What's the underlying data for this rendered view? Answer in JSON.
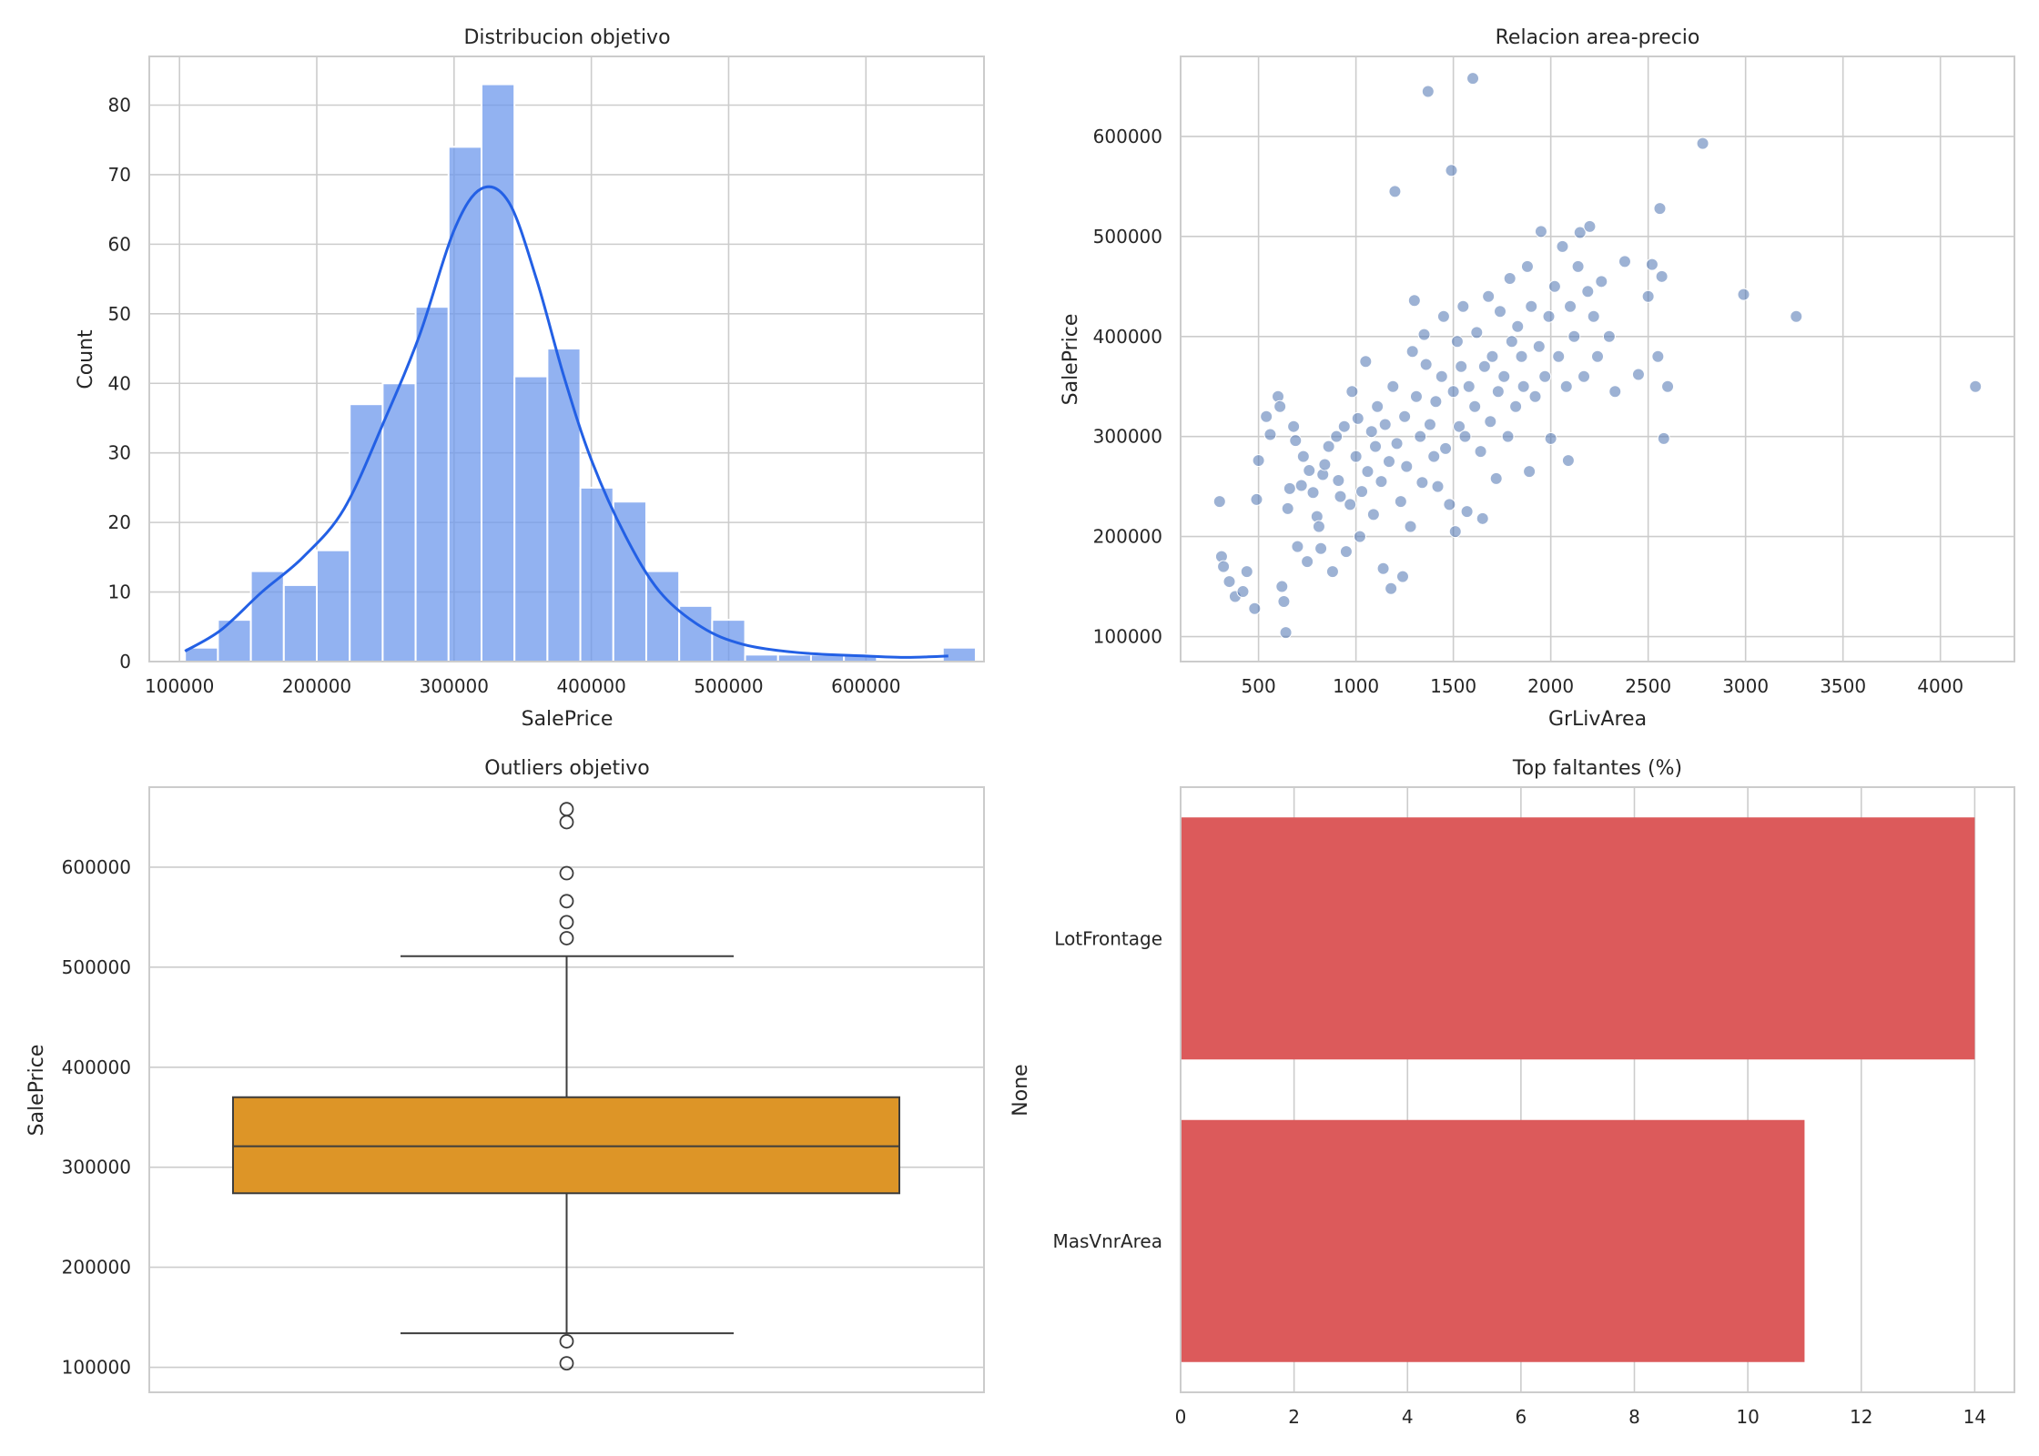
{
  "chart_data": [
    {
      "type": "histogram",
      "title": "Distribucion objetivo",
      "xlabel": "SalePrice",
      "ylabel": "Count",
      "xlim": [
        78000,
        686000
      ],
      "ylim": [
        0,
        87
      ],
      "xticks": [
        100000,
        200000,
        300000,
        400000,
        500000,
        600000
      ],
      "yticks": [
        0,
        10,
        20,
        30,
        40,
        50,
        60,
        70,
        80
      ],
      "bin_start": 104000,
      "bin_width": 24000,
      "counts": [
        2,
        6,
        13,
        11,
        16,
        37,
        40,
        51,
        74,
        83,
        41,
        45,
        25,
        23,
        13,
        8,
        6,
        1,
        1,
        1,
        1,
        0,
        0,
        2
      ],
      "kde": [
        [
          104000,
          1.5
        ],
        [
          130000,
          4.5
        ],
        [
          160000,
          10
        ],
        [
          190000,
          15
        ],
        [
          220000,
          22
        ],
        [
          250000,
          35
        ],
        [
          275000,
          47
        ],
        [
          300000,
          62
        ],
        [
          320000,
          68
        ],
        [
          340000,
          66
        ],
        [
          360000,
          55
        ],
        [
          380000,
          41
        ],
        [
          400000,
          29
        ],
        [
          425000,
          18
        ],
        [
          450000,
          10
        ],
        [
          480000,
          5
        ],
        [
          510000,
          2.5
        ],
        [
          550000,
          1.3
        ],
        [
          600000,
          0.8
        ],
        [
          630000,
          0.6
        ],
        [
          660000,
          0.8
        ]
      ],
      "bar_color": "#6d98ec",
      "line_color": "#2360e5",
      "grid": true
    },
    {
      "type": "scatter",
      "title": "Relacion area-precio",
      "xlabel": "GrLivArea",
      "ylabel": "SalePrice",
      "xlim": [
        100,
        4380
      ],
      "ylim": [
        75000,
        680000
      ],
      "xticks": [
        500,
        1000,
        1500,
        2000,
        2500,
        3000,
        3500,
        4000
      ],
      "yticks": [
        100000,
        200000,
        300000,
        400000,
        500000,
        600000
      ],
      "point_color": "#4c72b0",
      "grid": true,
      "points": [
        [
          300,
          235000
        ],
        [
          310,
          180000
        ],
        [
          320,
          170000
        ],
        [
          350,
          155000
        ],
        [
          380,
          140000
        ],
        [
          420,
          145000
        ],
        [
          440,
          165000
        ],
        [
          480,
          128000
        ],
        [
          490,
          237000
        ],
        [
          500,
          276000
        ],
        [
          540,
          320000
        ],
        [
          560,
          302000
        ],
        [
          600,
          340000
        ],
        [
          610,
          330000
        ],
        [
          620,
          150000
        ],
        [
          630,
          135000
        ],
        [
          640,
          104000
        ],
        [
          650,
          228000
        ],
        [
          660,
          248000
        ],
        [
          680,
          310000
        ],
        [
          690,
          296000
        ],
        [
          700,
          190000
        ],
        [
          720,
          251000
        ],
        [
          730,
          280000
        ],
        [
          750,
          175000
        ],
        [
          760,
          266000
        ],
        [
          780,
          244000
        ],
        [
          800,
          220000
        ],
        [
          810,
          210000
        ],
        [
          820,
          188000
        ],
        [
          830,
          262000
        ],
        [
          840,
          272000
        ],
        [
          860,
          290000
        ],
        [
          880,
          165000
        ],
        [
          900,
          300000
        ],
        [
          910,
          256000
        ],
        [
          920,
          240000
        ],
        [
          940,
          310000
        ],
        [
          950,
          185000
        ],
        [
          970,
          232000
        ],
        [
          980,
          345000
        ],
        [
          1000,
          280000
        ],
        [
          1010,
          318000
        ],
        [
          1020,
          200000
        ],
        [
          1030,
          245000
        ],
        [
          1050,
          375000
        ],
        [
          1060,
          265000
        ],
        [
          1080,
          305000
        ],
        [
          1090,
          222000
        ],
        [
          1100,
          290000
        ],
        [
          1110,
          330000
        ],
        [
          1130,
          255000
        ],
        [
          1140,
          168000
        ],
        [
          1150,
          312000
        ],
        [
          1170,
          275000
        ],
        [
          1180,
          148000
        ],
        [
          1190,
          350000
        ],
        [
          1200,
          545000
        ],
        [
          1210,
          293000
        ],
        [
          1230,
          235000
        ],
        [
          1240,
          160000
        ],
        [
          1250,
          320000
        ],
        [
          1260,
          270000
        ],
        [
          1280,
          210000
        ],
        [
          1290,
          385000
        ],
        [
          1300,
          436000
        ],
        [
          1310,
          340000
        ],
        [
          1330,
          300000
        ],
        [
          1340,
          254000
        ],
        [
          1350,
          402000
        ],
        [
          1360,
          372000
        ],
        [
          1370,
          645000
        ],
        [
          1380,
          312000
        ],
        [
          1400,
          280000
        ],
        [
          1410,
          335000
        ],
        [
          1420,
          250000
        ],
        [
          1440,
          360000
        ],
        [
          1450,
          420000
        ],
        [
          1460,
          288000
        ],
        [
          1480,
          232000
        ],
        [
          1490,
          566000
        ],
        [
          1500,
          345000
        ],
        [
          1510,
          205000
        ],
        [
          1520,
          395000
        ],
        [
          1530,
          310000
        ],
        [
          1540,
          370000
        ],
        [
          1550,
          430000
        ],
        [
          1560,
          300000
        ],
        [
          1570,
          225000
        ],
        [
          1580,
          350000
        ],
        [
          1600,
          658000
        ],
        [
          1610,
          330000
        ],
        [
          1620,
          404000
        ],
        [
          1640,
          285000
        ],
        [
          1650,
          218000
        ],
        [
          1660,
          370000
        ],
        [
          1680,
          440000
        ],
        [
          1690,
          315000
        ],
        [
          1700,
          380000
        ],
        [
          1720,
          258000
        ],
        [
          1730,
          345000
        ],
        [
          1740,
          425000
        ],
        [
          1760,
          360000
        ],
        [
          1780,
          300000
        ],
        [
          1790,
          458000
        ],
        [
          1800,
          395000
        ],
        [
          1820,
          330000
        ],
        [
          1830,
          410000
        ],
        [
          1850,
          380000
        ],
        [
          1860,
          350000
        ],
        [
          1880,
          470000
        ],
        [
          1890,
          265000
        ],
        [
          1900,
          430000
        ],
        [
          1920,
          340000
        ],
        [
          1940,
          390000
        ],
        [
          1950,
          505000
        ],
        [
          1970,
          360000
        ],
        [
          1990,
          420000
        ],
        [
          2000,
          298000
        ],
        [
          2020,
          450000
        ],
        [
          2040,
          380000
        ],
        [
          2060,
          490000
        ],
        [
          2080,
          350000
        ],
        [
          2090,
          276000
        ],
        [
          2100,
          430000
        ],
        [
          2120,
          400000
        ],
        [
          2140,
          470000
        ],
        [
          2150,
          504000
        ],
        [
          2170,
          360000
        ],
        [
          2190,
          445000
        ],
        [
          2200,
          510000
        ],
        [
          2220,
          420000
        ],
        [
          2240,
          380000
        ],
        [
          2260,
          455000
        ],
        [
          2300,
          400000
        ],
        [
          2330,
          345000
        ],
        [
          2380,
          475000
        ],
        [
          2450,
          362000
        ],
        [
          2500,
          440000
        ],
        [
          2520,
          472000
        ],
        [
          2550,
          380000
        ],
        [
          2560,
          528000
        ],
        [
          2570,
          460000
        ],
        [
          2580,
          298000
        ],
        [
          2600,
          350000
        ],
        [
          2780,
          593000
        ],
        [
          2990,
          442000
        ],
        [
          3260,
          420000
        ],
        [
          4180,
          350000
        ]
      ]
    },
    {
      "type": "box",
      "title": "Outliers objetivo",
      "ylabel": "SalePrice",
      "ylim": [
        75000,
        680000
      ],
      "yticks": [
        100000,
        200000,
        300000,
        400000,
        500000,
        600000
      ],
      "box": {
        "whisker_low": 134000,
        "q1": 274000,
        "median": 321000,
        "q3": 370000,
        "whisker_high": 511000
      },
      "outliers": [
        658000,
        645000,
        594000,
        566000,
        545000,
        529000,
        126000,
        104000
      ],
      "box_color": "#dd9527",
      "grid": true
    },
    {
      "type": "bar",
      "orientation": "horizontal",
      "title": "Top faltantes (%)",
      "ylabel": "None",
      "xlim": [
        0,
        14.7
      ],
      "xticks": [
        0,
        2,
        4,
        6,
        8,
        10,
        12,
        14
      ],
      "categories": [
        "LotFrontage",
        "MasVnrArea"
      ],
      "values": [
        14,
        11
      ],
      "bar_color": "#dc5a5b",
      "grid": true
    }
  ]
}
